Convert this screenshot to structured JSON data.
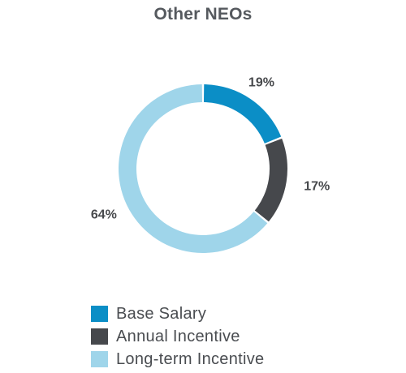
{
  "chart_data": {
    "type": "pie",
    "title": "Other NEOs",
    "categories": [
      "Base Salary",
      "Annual Incentive",
      "Long-term Incentive"
    ],
    "values": [
      19,
      17,
      64
    ],
    "value_labels": [
      "19%",
      "17%",
      "64%"
    ],
    "colors": [
      "#0b8ec6",
      "#46484c",
      "#9fd5ea"
    ],
    "donut": true,
    "legend_position": "bottom-left"
  }
}
